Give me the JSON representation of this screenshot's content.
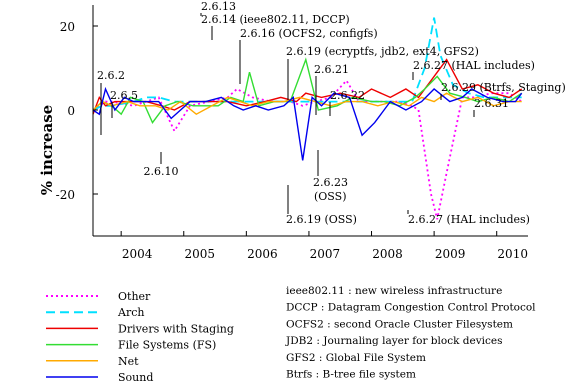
{
  "chart_data": {
    "type": "line",
    "xlabel": "",
    "ylabel": "% increase",
    "xlim": [
      2003.55,
      2010.5
    ],
    "ylim": [
      -30,
      25
    ],
    "x_tick_labels": [
      "2004",
      "2005",
      "2006",
      "2007",
      "2008",
      "2009",
      "2010"
    ],
    "y_tick_labels": [
      "20",
      "0",
      "-20"
    ],
    "x_ticks": [
      2004,
      2005,
      2006,
      2007,
      2008,
      2009,
      2010
    ],
    "y_ticks": [
      20,
      0,
      -20
    ],
    "grid": false,
    "legend_position": "bottom-left",
    "series": [
      {
        "name": "Other",
        "color": "#ff00ff",
        "dash": "dotted",
        "points": [
          [
            2003.55,
            0
          ],
          [
            2003.65,
            1
          ],
          [
            2003.75,
            2
          ],
          [
            2003.85,
            2
          ],
          [
            2004.2,
            1
          ],
          [
            2004.4,
            2
          ],
          [
            2004.6,
            3
          ],
          [
            2004.85,
            -5
          ],
          [
            2005.1,
            1
          ],
          [
            2005.4,
            2
          ],
          [
            2005.7,
            3
          ],
          [
            2005.85,
            5
          ],
          [
            2006.1,
            3
          ],
          [
            2006.4,
            2
          ],
          [
            2006.7,
            2
          ],
          [
            2006.9,
            1
          ],
          [
            2007.1,
            2
          ],
          [
            2007.35,
            3
          ],
          [
            2007.6,
            7
          ],
          [
            2007.8,
            2
          ],
          [
            2008.05,
            2
          ],
          [
            2008.4,
            2
          ],
          [
            2008.65,
            1
          ],
          [
            2008.75,
            0
          ],
          [
            2008.95,
            -20
          ],
          [
            2009.05,
            -26
          ],
          [
            2009.2,
            -15
          ],
          [
            2009.45,
            3
          ],
          [
            2009.7,
            3
          ],
          [
            2009.9,
            4
          ],
          [
            2010.2,
            4
          ],
          [
            2010.4,
            2
          ]
        ]
      },
      {
        "name": "Arch",
        "color": "#00e0ff",
        "dash": "dashed",
        "points": [
          [
            2003.55,
            0
          ],
          [
            2003.7,
            1
          ],
          [
            2003.85,
            1
          ],
          [
            2004.2,
            2
          ],
          [
            2004.4,
            3
          ],
          [
            2004.6,
            3
          ],
          [
            2004.85,
            2
          ],
          [
            2005.1,
            2
          ],
          [
            2005.4,
            2
          ],
          [
            2005.7,
            2
          ],
          [
            2006.0,
            2
          ],
          [
            2006.3,
            2
          ],
          [
            2006.6,
            2
          ],
          [
            2006.9,
            2
          ],
          [
            2007.2,
            2
          ],
          [
            2007.5,
            2
          ],
          [
            2007.8,
            2
          ],
          [
            2008.1,
            2
          ],
          [
            2008.4,
            2
          ],
          [
            2008.65,
            2
          ],
          [
            2008.85,
            10
          ],
          [
            2009.0,
            22
          ],
          [
            2009.1,
            13
          ],
          [
            2009.3,
            6
          ],
          [
            2009.55,
            4
          ],
          [
            2009.8,
            3
          ],
          [
            2010.1,
            3
          ],
          [
            2010.4,
            3
          ]
        ]
      },
      {
        "name": "Drivers with Staging",
        "color": "#ee0000",
        "dash": "solid",
        "points": [
          [
            2003.55,
            -1
          ],
          [
            2003.65,
            3
          ],
          [
            2003.75,
            1
          ],
          [
            2003.9,
            2
          ],
          [
            2004.2,
            2
          ],
          [
            2004.4,
            2
          ],
          [
            2004.65,
            1
          ],
          [
            2004.85,
            0
          ],
          [
            2005.1,
            2
          ],
          [
            2005.4,
            2
          ],
          [
            2005.7,
            2
          ],
          [
            2006.0,
            1
          ],
          [
            2006.3,
            2
          ],
          [
            2006.55,
            3
          ],
          [
            2006.8,
            2
          ],
          [
            2006.95,
            4
          ],
          [
            2007.2,
            3
          ],
          [
            2007.5,
            4
          ],
          [
            2007.8,
            3
          ],
          [
            2008.0,
            5
          ],
          [
            2008.3,
            3
          ],
          [
            2008.55,
            5
          ],
          [
            2008.75,
            3
          ],
          [
            2009.0,
            8
          ],
          [
            2009.2,
            12
          ],
          [
            2009.45,
            5
          ],
          [
            2009.7,
            6
          ],
          [
            2009.95,
            4
          ],
          [
            2010.2,
            3
          ],
          [
            2010.4,
            5
          ]
        ]
      },
      {
        "name": "File Systems (FS)",
        "color": "#33dd33",
        "dash": "solid",
        "points": [
          [
            2003.55,
            0
          ],
          [
            2003.7,
            2
          ],
          [
            2003.85,
            1
          ],
          [
            2004.0,
            -1
          ],
          [
            2004.15,
            3
          ],
          [
            2004.35,
            2
          ],
          [
            2004.5,
            -3
          ],
          [
            2004.7,
            1
          ],
          [
            2004.9,
            2
          ],
          [
            2005.15,
            1
          ],
          [
            2005.35,
            1
          ],
          [
            2005.55,
            1
          ],
          [
            2005.75,
            3
          ],
          [
            2005.95,
            2
          ],
          [
            2006.05,
            9
          ],
          [
            2006.2,
            1
          ],
          [
            2006.45,
            2
          ],
          [
            2006.7,
            2
          ],
          [
            2006.95,
            12
          ],
          [
            2007.15,
            0
          ],
          [
            2007.45,
            1
          ],
          [
            2007.7,
            3
          ],
          [
            2008.0,
            2
          ],
          [
            2008.2,
            2
          ],
          [
            2008.45,
            1
          ],
          [
            2008.7,
            3
          ],
          [
            2008.85,
            5
          ],
          [
            2009.05,
            8
          ],
          [
            2009.25,
            4
          ],
          [
            2009.5,
            3
          ],
          [
            2009.7,
            2
          ],
          [
            2009.95,
            3
          ],
          [
            2010.2,
            2
          ],
          [
            2010.4,
            4
          ]
        ]
      },
      {
        "name": "Net",
        "color": "#ffaa00",
        "dash": "solid",
        "points": [
          [
            2003.55,
            0
          ],
          [
            2003.7,
            2
          ],
          [
            2003.85,
            1
          ],
          [
            2004.1,
            2
          ],
          [
            2004.3,
            1
          ],
          [
            2004.55,
            1
          ],
          [
            2004.75,
            0
          ],
          [
            2004.95,
            2
          ],
          [
            2005.2,
            -1
          ],
          [
            2005.45,
            1
          ],
          [
            2005.7,
            3
          ],
          [
            2005.9,
            2
          ],
          [
            2006.1,
            1
          ],
          [
            2006.35,
            2
          ],
          [
            2006.6,
            2
          ],
          [
            2006.85,
            3
          ],
          [
            2007.1,
            2
          ],
          [
            2007.35,
            1
          ],
          [
            2007.6,
            2
          ],
          [
            2007.85,
            2
          ],
          [
            2008.1,
            1
          ],
          [
            2008.35,
            2
          ],
          [
            2008.6,
            1
          ],
          [
            2008.8,
            3
          ],
          [
            2009.0,
            2
          ],
          [
            2009.2,
            4
          ],
          [
            2009.45,
            2
          ],
          [
            2009.7,
            3
          ],
          [
            2009.95,
            1
          ],
          [
            2010.2,
            2
          ],
          [
            2010.4,
            2
          ]
        ]
      },
      {
        "name": "Sound",
        "color": "#0000ee",
        "dash": "solid",
        "points": [
          [
            2003.55,
            0
          ],
          [
            2003.65,
            -1
          ],
          [
            2003.75,
            5
          ],
          [
            2003.9,
            0
          ],
          [
            2004.05,
            3
          ],
          [
            2004.2,
            2
          ],
          [
            2004.4,
            2
          ],
          [
            2004.6,
            2
          ],
          [
            2004.8,
            -2
          ],
          [
            2005.1,
            2
          ],
          [
            2005.35,
            2
          ],
          [
            2005.6,
            3
          ],
          [
            2005.8,
            1
          ],
          [
            2005.95,
            0
          ],
          [
            2006.15,
            1
          ],
          [
            2006.35,
            0
          ],
          [
            2006.6,
            1
          ],
          [
            2006.75,
            3
          ],
          [
            2006.9,
            -12
          ],
          [
            2007.05,
            3
          ],
          [
            2007.2,
            1
          ],
          [
            2007.4,
            4
          ],
          [
            2007.65,
            3
          ],
          [
            2007.85,
            -6
          ],
          [
            2008.05,
            -3
          ],
          [
            2008.3,
            2
          ],
          [
            2008.55,
            0
          ],
          [
            2008.8,
            2
          ],
          [
            2009.0,
            5
          ],
          [
            2009.25,
            2
          ],
          [
            2009.45,
            3
          ],
          [
            2009.6,
            5
          ],
          [
            2009.85,
            3
          ],
          [
            2010.1,
            2
          ],
          [
            2010.3,
            2
          ],
          [
            2010.4,
            4
          ]
        ]
      }
    ],
    "annotations": [
      {
        "text": "2.6.13",
        "x": 2005.75,
        "y": 5
      },
      {
        "text": "2.6.14 (ieee802.11, DCCP)",
        "x": 2005.9,
        "y": 9
      },
      {
        "text": "2.6.16 (OCFS2, configfs)",
        "x": 2006.05,
        "y": 9
      },
      {
        "text": "2.6.19 (ecryptfs, jdb2, ext4, GFS2)",
        "x": 2006.95,
        "y": 12
      },
      {
        "text": "2.6.21",
        "x": 2007.2,
        "y": 3
      },
      {
        "text": "2.6.22",
        "x": 2007.6,
        "y": 7
      },
      {
        "text": "2.6.27 (HAL includes)",
        "x": 2009.0,
        "y": 22
      },
      {
        "text": "2.6.29 (Btrfs, Staging)",
        "x": 2009.2,
        "y": 12
      },
      {
        "text": "2.6.31",
        "x": 2009.6,
        "y": 5
      },
      {
        "text": "2.6.2",
        "x": 2003.65,
        "y": 3
      },
      {
        "text": "2.6.5",
        "x": 2003.78,
        "y": 5
      },
      {
        "text": "2.6.10",
        "x": 2004.85,
        "y": -5
      },
      {
        "text": "2.6.23 (OSS)",
        "x": 2007.85,
        "y": -6
      },
      {
        "text": "2.6.19 (OSS)",
        "x": 2006.9,
        "y": -12
      },
      {
        "text": "2.6.27 (HAL includes)",
        "x": 2009.05,
        "y": -26
      }
    ],
    "glossary": [
      "ieee802.11 : new wireless infrastructure",
      "DCCP : Datagram Congestion Control Protocol",
      "OCFS2 : second Oracle Cluster Filesystem",
      "JDB2 : Journaling layer for block devices",
      "GFS2 : Global File System",
      "Btrfs  : B-tree file system"
    ]
  }
}
